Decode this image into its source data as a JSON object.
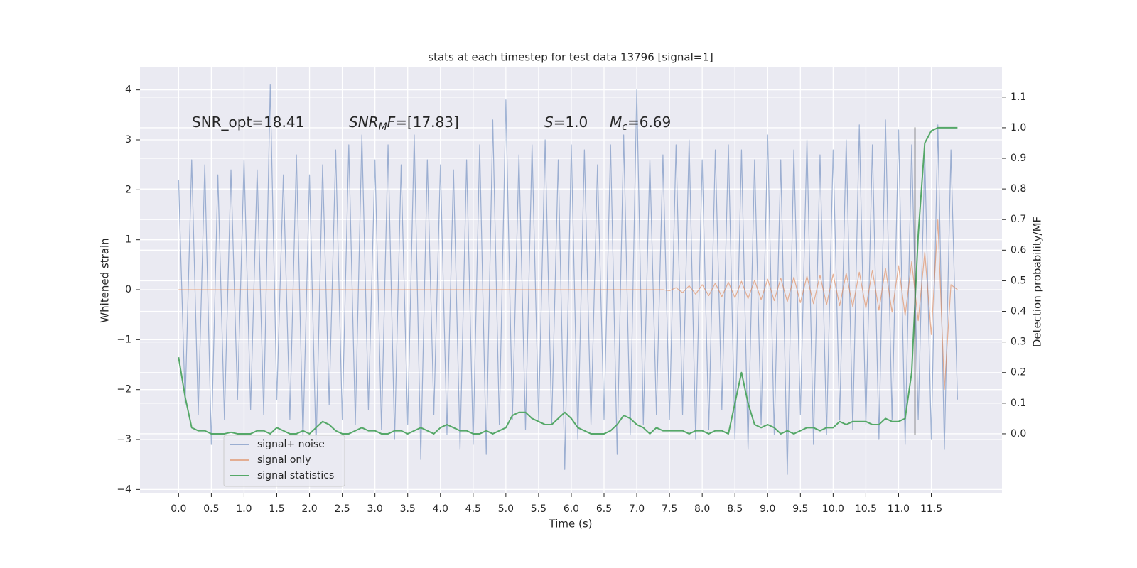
{
  "chart_data": {
    "type": "line",
    "title": "stats at each timestep for test data 13796 [signal=1]",
    "x_label": "Time (s)",
    "y_label": "Whitened strain",
    "y2_label": "Detection probability/MF",
    "x": [
      0,
      0.1,
      0.2,
      0.3,
      0.4,
      0.5,
      0.6,
      0.7,
      0.8,
      0.9,
      1,
      1.1,
      1.2,
      1.3,
      1.4,
      1.5,
      1.6,
      1.7,
      1.8,
      1.9,
      2,
      2.1,
      2.2,
      2.3,
      2.4,
      2.5,
      2.6,
      2.7,
      2.8,
      2.9,
      3,
      3.1,
      3.2,
      3.3,
      3.4,
      3.5,
      3.6,
      3.7,
      3.8,
      3.9,
      4,
      4.1,
      4.2,
      4.3,
      4.4,
      4.5,
      4.6,
      4.7,
      4.8,
      4.9,
      5,
      5.1,
      5.2,
      5.3,
      5.4,
      5.5,
      5.6,
      5.7,
      5.8,
      5.9,
      6,
      6.1,
      6.2,
      6.3,
      6.4,
      6.5,
      6.6,
      6.7,
      6.8,
      6.9,
      7,
      7.1,
      7.2,
      7.3,
      7.4,
      7.5,
      7.6,
      7.7,
      7.8,
      7.9,
      8,
      8.1,
      8.2,
      8.3,
      8.4,
      8.5,
      8.6,
      8.7,
      8.8,
      8.9,
      9,
      9.1,
      9.2,
      9.3,
      9.4,
      9.5,
      9.6,
      9.7,
      9.8,
      9.9,
      10,
      10.1,
      10.2,
      10.3,
      10.4,
      10.5,
      10.6,
      10.7,
      10.8,
      10.9,
      11,
      11.1,
      11.2,
      11.3,
      11.4,
      11.5,
      11.6,
      11.7,
      11.8,
      11.9
    ],
    "series": [
      {
        "name": "signal+ noise",
        "color": "#4c72b0",
        "opacity": 0.5,
        "values": [
          2.2,
          -2.3,
          2.6,
          -2.5,
          2.5,
          -3.1,
          2.3,
          -2.6,
          2.4,
          -2.2,
          2.6,
          -2.4,
          2.4,
          -2.5,
          4.1,
          -2.2,
          2.3,
          -2.6,
          2.7,
          -3.0,
          2.3,
          -3.2,
          2.5,
          -2.3,
          2.8,
          -2.6,
          2.9,
          -2.7,
          3.1,
          -2.4,
          2.6,
          -2.8,
          2.9,
          -3.0,
          2.5,
          -2.7,
          3.1,
          -3.4,
          2.6,
          -2.5,
          2.5,
          -2.9,
          2.4,
          -3.2,
          2.6,
          -3.1,
          2.9,
          -3.3,
          3.4,
          -2.7,
          3.8,
          -2.6,
          2.7,
          -2.8,
          2.9,
          -2.6,
          3.0,
          -2.7,
          2.6,
          -3.6,
          2.9,
          -3.0,
          2.8,
          -2.7,
          2.5,
          -2.6,
          2.9,
          -3.3,
          3.1,
          -2.9,
          4.0,
          -2.7,
          2.6,
          -2.5,
          2.7,
          -2.6,
          2.9,
          -2.5,
          3.0,
          -3.0,
          2.6,
          -2.8,
          2.8,
          -2.4,
          2.9,
          -3.0,
          2.8,
          -3.2,
          2.6,
          -2.7,
          3.1,
          -2.9,
          2.6,
          -3.7,
          2.8,
          -2.5,
          3.0,
          -3.1,
          2.7,
          -2.9,
          2.8,
          -2.6,
          3.0,
          -2.8,
          3.3,
          -2.7,
          2.9,
          -3.0,
          3.4,
          -2.6,
          3.2,
          -3.1,
          2.9,
          -2.6,
          2.7,
          -3.0,
          3.3,
          -3.2,
          2.8,
          -2.2
        ]
      },
      {
        "name": "signal only",
        "color": "#dd8452",
        "opacity": 0.6,
        "values": [
          0,
          0,
          0,
          0,
          0,
          0,
          0,
          0,
          0,
          0,
          0,
          0,
          0,
          0,
          0,
          0,
          0,
          0,
          0,
          0,
          0,
          0,
          0,
          0,
          0,
          0,
          0,
          0,
          0,
          0,
          0,
          0,
          0,
          0,
          0,
          0,
          0,
          0,
          0,
          0,
          0,
          0,
          0,
          0,
          0,
          0,
          0,
          0,
          0,
          0,
          0,
          0,
          0,
          0,
          0,
          0,
          0,
          0,
          0,
          0,
          0,
          0,
          0,
          0,
          0,
          0,
          0,
          0,
          0,
          0,
          0,
          0,
          0,
          0,
          0,
          -0.02,
          0.04,
          -0.06,
          0.08,
          -0.09,
          0.1,
          -0.12,
          0.13,
          -0.14,
          0.15,
          -0.16,
          0.17,
          -0.18,
          0.19,
          -0.2,
          0.21,
          -0.22,
          0.23,
          -0.24,
          0.25,
          -0.26,
          0.27,
          -0.28,
          0.29,
          -0.3,
          0.31,
          -0.32,
          0.33,
          -0.34,
          0.35,
          -0.37,
          0.39,
          -0.41,
          0.43,
          -0.45,
          0.48,
          -0.52,
          0.56,
          -0.62,
          0.75,
          -0.9,
          1.4,
          -2.0,
          0.1,
          0
        ]
      },
      {
        "name": "signal statistics",
        "color": "#55a868",
        "opacity": 1,
        "axis": "y2",
        "values": [
          0.25,
          0.12,
          0.02,
          0.01,
          0.01,
          0.0,
          0.0,
          0.0,
          0.005,
          0.0,
          0.0,
          0.0,
          0.01,
          0.01,
          0.0,
          0.02,
          0.01,
          0.0,
          0.0,
          0.01,
          0.0,
          0.02,
          0.04,
          0.03,
          0.01,
          0.0,
          0.0,
          0.01,
          0.02,
          0.01,
          0.01,
          0.0,
          0.0,
          0.01,
          0.01,
          0.0,
          0.01,
          0.02,
          0.01,
          0.0,
          0.02,
          0.03,
          0.02,
          0.01,
          0.01,
          0.0,
          0.0,
          0.01,
          0.0,
          0.01,
          0.02,
          0.06,
          0.07,
          0.07,
          0.05,
          0.04,
          0.03,
          0.03,
          0.05,
          0.07,
          0.05,
          0.02,
          0.01,
          0.0,
          0.0,
          0.0,
          0.01,
          0.03,
          0.06,
          0.05,
          0.03,
          0.02,
          0.0,
          0.02,
          0.01,
          0.01,
          0.01,
          0.01,
          0.0,
          0.01,
          0.01,
          0.0,
          0.01,
          0.01,
          0.0,
          0.1,
          0.2,
          0.1,
          0.03,
          0.02,
          0.03,
          0.02,
          0.0,
          0.01,
          0.0,
          0.01,
          0.02,
          0.02,
          0.01,
          0.02,
          0.02,
          0.04,
          0.03,
          0.04,
          0.04,
          0.04,
          0.03,
          0.03,
          0.05,
          0.04,
          0.04,
          0.05,
          0.2,
          0.65,
          0.95,
          0.99,
          1.0,
          1.0,
          1.0,
          1.0
        ]
      }
    ],
    "vline": {
      "x": 11.25,
      "ymin": -2.9,
      "ymax": 3.25,
      "color": "#333333"
    },
    "annotations": [
      {
        "parts": [
          {
            "text": "SNR_opt=18.41",
            "style": "normal"
          }
        ]
      },
      {
        "parts": [
          {
            "text": "SNR",
            "style": "italic"
          },
          {
            "text": "M",
            "style": "sub"
          },
          {
            "text": "F",
            "style": "italic"
          },
          {
            "text": "=[17.83]",
            "style": "normal"
          }
        ]
      },
      {
        "parts": [
          {
            "text": "S",
            "style": "italic"
          },
          {
            "text": "=1.0",
            "style": "normal"
          }
        ]
      },
      {
        "parts": [
          {
            "text": "M",
            "style": "italic"
          },
          {
            "text": "c",
            "style": "sub"
          },
          {
            "text": "=6.69",
            "style": "normal"
          }
        ]
      }
    ],
    "xlim": [
      -0.59,
      12.58
    ],
    "xticks": [
      {
        "value": 0,
        "label": "0.0"
      },
      0.5,
      {
        "value": 1,
        "label": "1.0"
      },
      1.5,
      {
        "value": 2,
        "label": "2.0"
      },
      2.5,
      {
        "value": 3,
        "label": "3.0"
      },
      3.5,
      {
        "value": 4,
        "label": "4.0"
      },
      4.5,
      {
        "value": 5,
        "label": "5.0"
      },
      5.5,
      {
        "value": 6,
        "label": "6.0"
      },
      6.5,
      {
        "value": 7,
        "label": "7.0"
      },
      7.5,
      {
        "value": 8,
        "label": "8.0"
      },
      8.5,
      {
        "value": 9,
        "label": "9.0"
      },
      9.5,
      {
        "value": 10,
        "label": "10.0"
      },
      10.5,
      {
        "value": 11,
        "label": "11.0"
      },
      11.5
    ],
    "ylim": [
      -4.08,
      4.45
    ],
    "yticks": [
      {
        "value": -4,
        "label": "−4"
      },
      {
        "value": -3,
        "label": "−3"
      },
      {
        "value": -2,
        "label": "−2"
      },
      {
        "value": -1,
        "label": "−1"
      },
      0,
      1,
      2,
      3,
      4
    ],
    "y2lim": [
      -0.195,
      1.197
    ],
    "y2ticks": [
      {
        "value": 0,
        "label": "0.0"
      },
      0.1,
      0.2,
      0.3,
      0.4,
      0.5,
      0.6,
      0.7,
      0.8,
      0.9,
      {
        "value": 1,
        "label": "1.0"
      },
      1.1
    ],
    "grid": true,
    "legend": "lower left",
    "background": "#eaeaf2"
  }
}
